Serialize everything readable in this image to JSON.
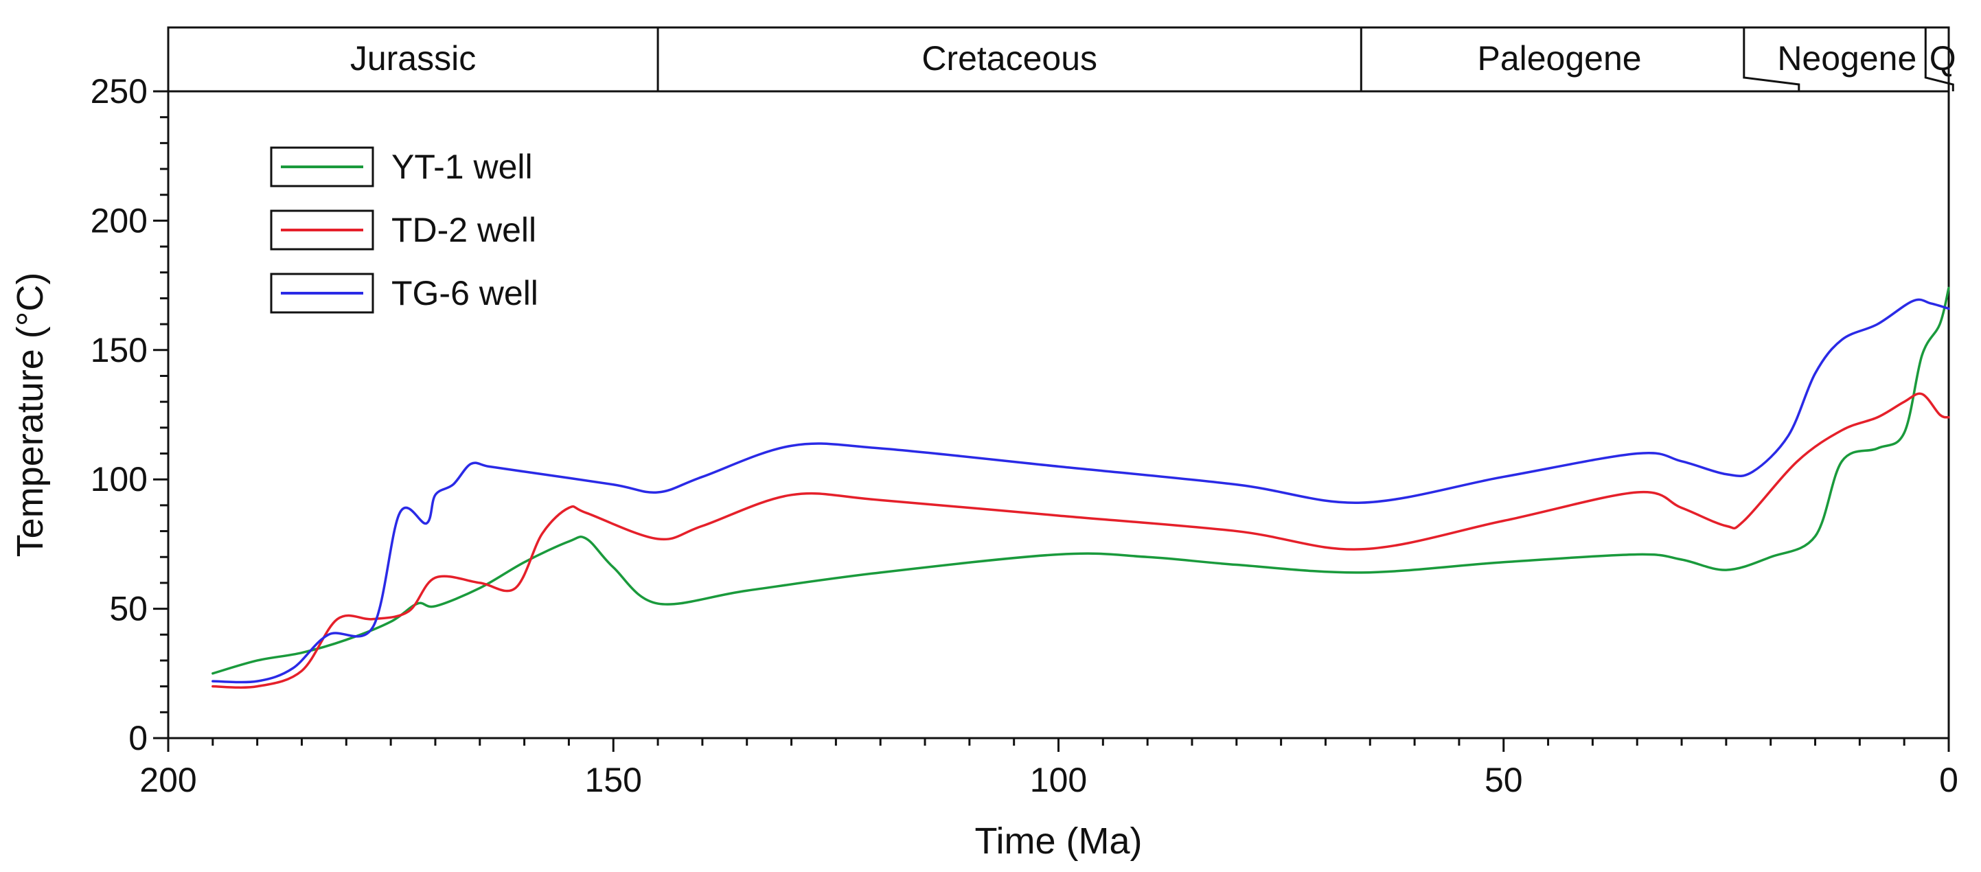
{
  "chart_data": {
    "type": "line",
    "title": "",
    "xlabel": "Time (Ma)",
    "ylabel": "Temperature (°C)",
    "xlim": [
      200,
      0
    ],
    "ylim": [
      0,
      250
    ],
    "x_ticks": [
      200,
      150,
      100,
      50,
      0
    ],
    "x_tick_labels": [
      "200",
      "150",
      "100",
      "50",
      "0"
    ],
    "y_ticks": [
      0,
      50,
      100,
      150,
      200,
      250
    ],
    "y_tick_labels": [
      "0",
      "50",
      "100",
      "150",
      "200",
      "250"
    ],
    "grid": false,
    "legend_position": "top-left",
    "periods": [
      {
        "name": "Jurassic",
        "start": 200,
        "end": 145
      },
      {
        "name": "Cretaceous",
        "start": 145,
        "end": 66
      },
      {
        "name": "Paleogene",
        "start": 66,
        "end": 23
      },
      {
        "name": "Neogene",
        "start": 23,
        "end": 2.6
      },
      {
        "name": "Q",
        "start": 2.6,
        "end": 0
      }
    ],
    "series": [
      {
        "name": "YT-1 well",
        "color": "#1a9a3c",
        "x": [
          195,
          190,
          185,
          180,
          175,
          172,
          170,
          165,
          160,
          155,
          153,
          150,
          145,
          135,
          120,
          100,
          90,
          80,
          66,
          50,
          35,
          30,
          25,
          20,
          15,
          12,
          8,
          5,
          3,
          1,
          0
        ],
        "y": [
          25,
          30,
          33,
          38,
          45,
          52,
          51,
          58,
          68,
          76,
          77,
          66,
          52,
          57,
          64,
          71,
          70,
          67,
          64,
          68,
          71,
          69,
          65,
          70,
          78,
          107,
          112,
          118,
          148,
          160,
          174
        ]
      },
      {
        "name": "TD-2 well",
        "color": "#e5202a",
        "x": [
          195,
          190,
          185,
          181,
          177,
          173,
          170,
          165,
          161,
          158,
          155,
          153,
          145,
          140,
          130,
          120,
          100,
          80,
          66,
          50,
          35,
          30,
          25,
          23,
          17,
          12,
          8,
          5,
          3,
          1,
          0
        ],
        "y": [
          20,
          20,
          26,
          46,
          46,
          49,
          62,
          60,
          58,
          79,
          89,
          87,
          77,
          82,
          94,
          92,
          86,
          80,
          73,
          84,
          95,
          89,
          82,
          84,
          107,
          119,
          124,
          130,
          133,
          125,
          124
        ]
      },
      {
        "name": "TG-6 well",
        "color": "#2a2ae6",
        "x": [
          195,
          190,
          186,
          182,
          177,
          174,
          171,
          170,
          168,
          166,
          164,
          160,
          150,
          145,
          140,
          130,
          120,
          100,
          80,
          66,
          50,
          35,
          30,
          25,
          22,
          18,
          15,
          12,
          8,
          4,
          2,
          0
        ],
        "y": [
          22,
          22,
          27,
          40,
          43,
          87,
          83,
          94,
          98,
          106,
          105,
          103,
          98,
          95,
          101,
          113,
          112,
          105,
          98,
          91,
          101,
          110,
          107,
          102,
          103,
          117,
          141,
          154,
          160,
          169,
          168,
          166
        ]
      }
    ]
  }
}
